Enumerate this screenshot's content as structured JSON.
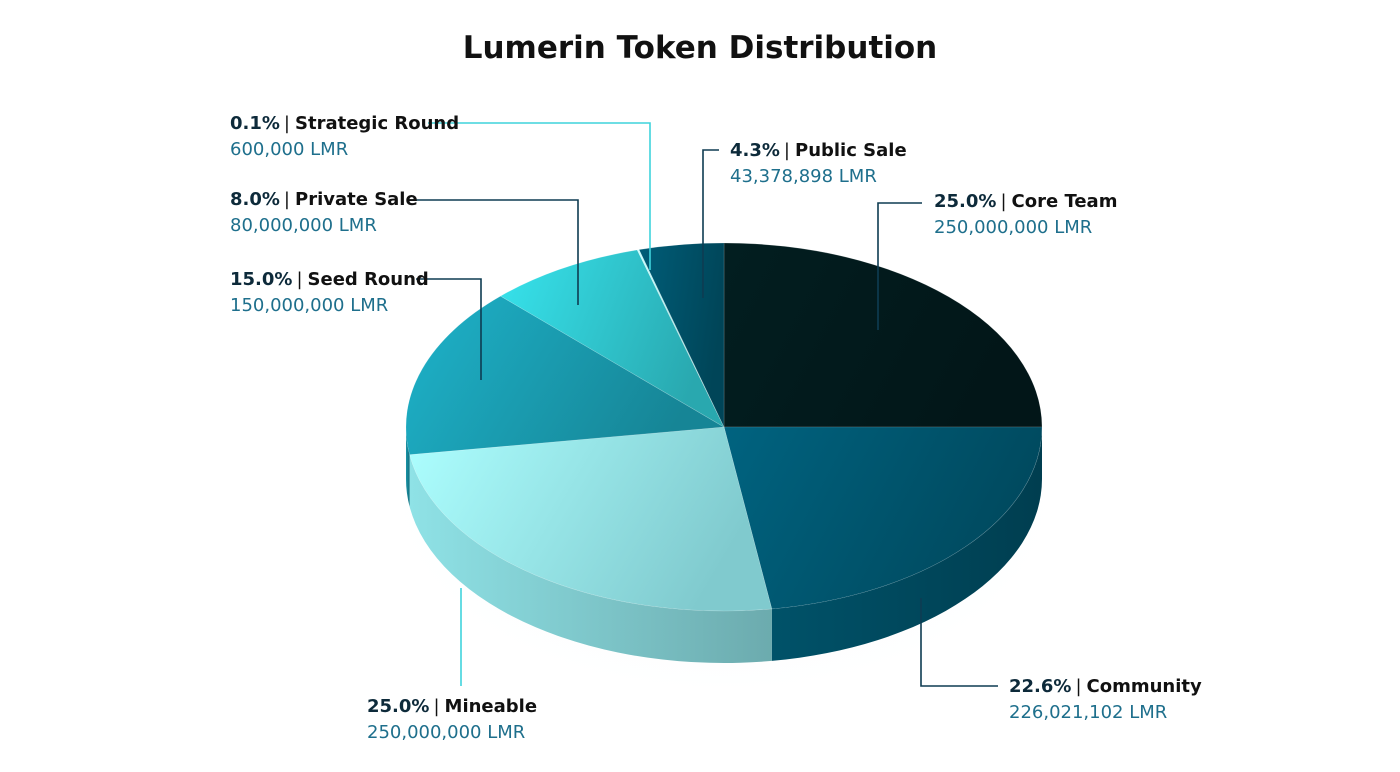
{
  "chart_data": {
    "type": "pie",
    "title": "Lumerin Token Distribution",
    "slices": [
      {
        "label": "Core Team",
        "percent_label": "25.0%",
        "amount_label": "250,000,000 LMR",
        "value": 25.0,
        "color": "#021a1c",
        "label_pos": "top-right"
      },
      {
        "label": "Community",
        "percent_label": "22.6%",
        "amount_label": "226,021,102 LMR",
        "value": 22.6,
        "color": "#00566f",
        "label_pos": "bottom-right"
      },
      {
        "label": "Mineable",
        "percent_label": "25.0%",
        "amount_label": "250,000,000 LMR",
        "value": 25.0,
        "color": "#96eef2",
        "label_pos": "bottom-left"
      },
      {
        "label": "Seed Round",
        "percent_label": "15.0%",
        "amount_label": "150,000,000 LMR",
        "value": 15.0,
        "color": "#1a9cb0",
        "label_pos": "left"
      },
      {
        "label": "Private Sale",
        "percent_label": "8.0%",
        "amount_label": "80,000,000 LMR",
        "value": 8.0,
        "color": "#30c6ce",
        "label_pos": "top-left"
      },
      {
        "label": "Strategic Round",
        "percent_label": "0.1%",
        "amount_label": "600,000 LMR",
        "value": 0.1,
        "color": "#aef2f2",
        "label_pos": "top-left"
      },
      {
        "label": "Public Sale",
        "percent_label": "4.3%",
        "amount_label": "43,378,898 LMR",
        "value": 4.3,
        "color": "#005168",
        "label_pos": "top"
      }
    ],
    "separator": "|",
    "colors": {
      "percent_text": "#0d2a3a",
      "label_text": "#111111",
      "amount_text": "#1e6f8c",
      "leader_dark": "#0e3c52",
      "leader_light": "#3fd3dc"
    }
  }
}
